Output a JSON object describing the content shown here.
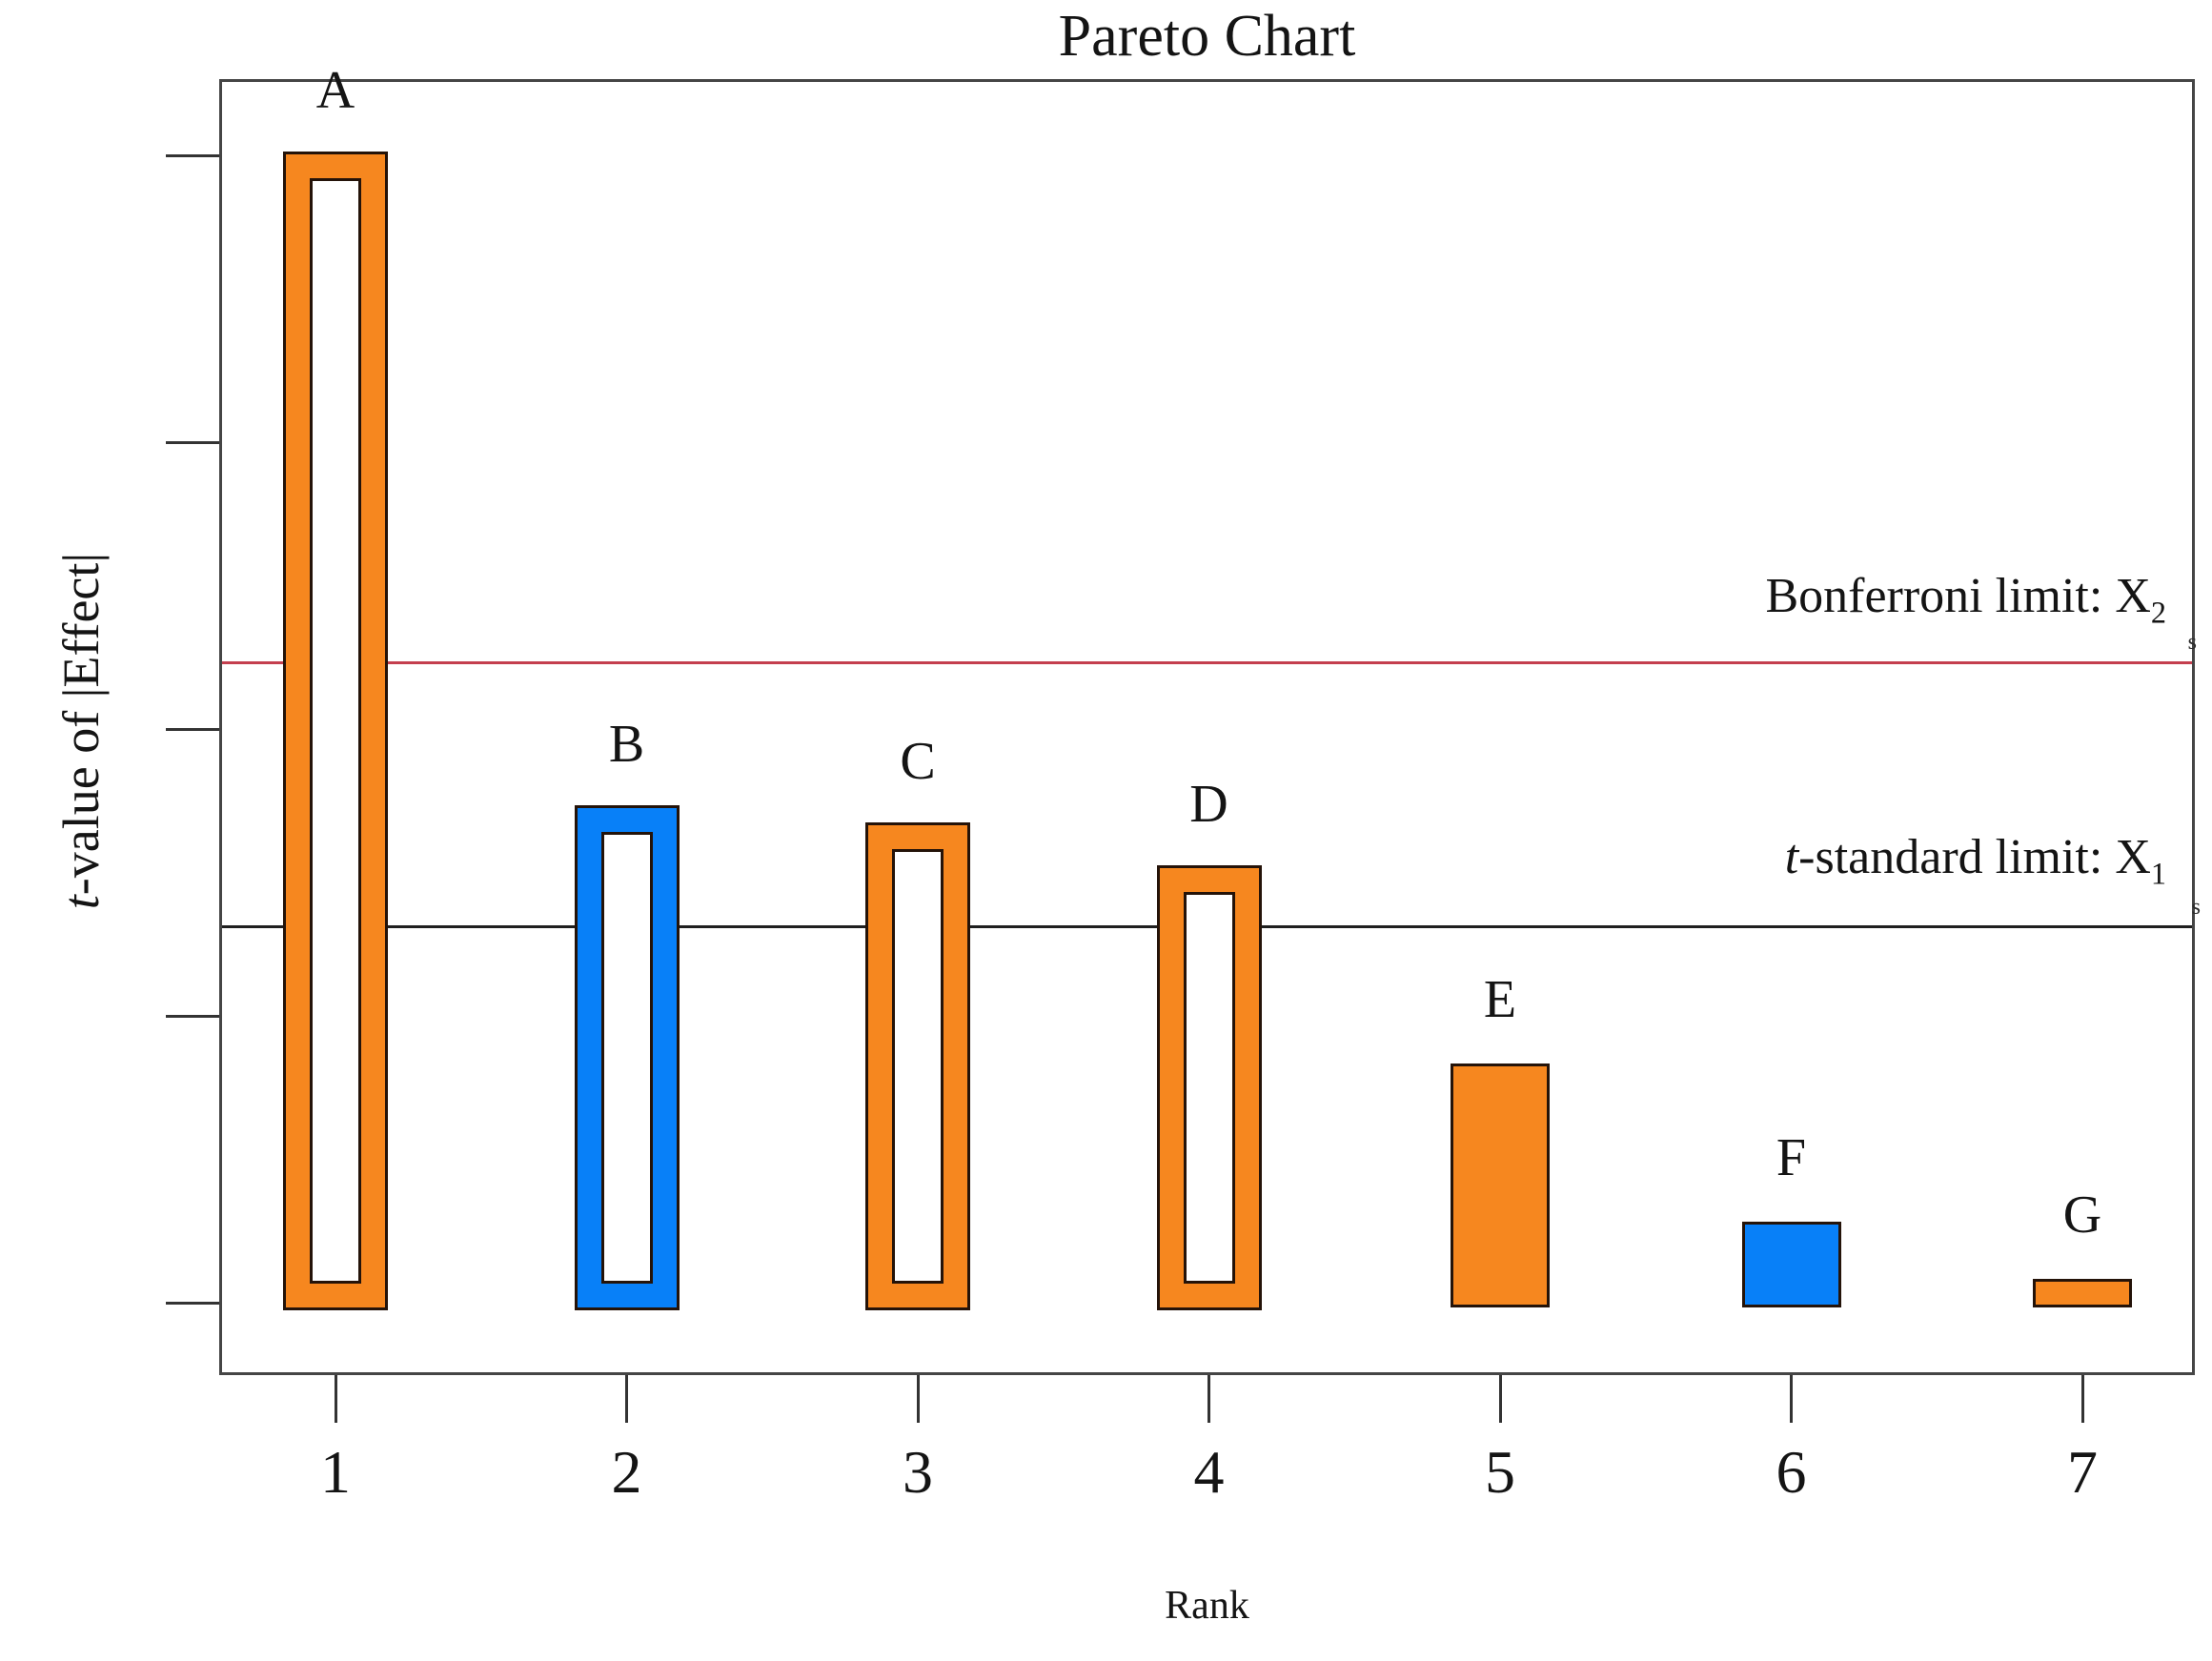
{
  "title": "Pareto Chart",
  "axes": {
    "x_label": "Rank",
    "y_label_italic": "t",
    "y_label_rest": "-value of |Effect|",
    "x_tick_labels": [
      "1",
      "2",
      "3",
      "4",
      "5",
      "6",
      "7"
    ],
    "y_tick_count": 5
  },
  "annotations": {
    "bonferroni_text": "Bonferroni limit: X",
    "bonferroni_sub": "2",
    "tstandard_italic": "t",
    "tstandard_text": "-standard limit: X",
    "tstandard_sub": "1",
    "right_edge_mark_top": "s",
    "right_edge_mark_bottom": "s"
  },
  "colors": {
    "orange": "#F6871F",
    "blue": "#0880F8",
    "bar_outline": "#241309",
    "frame": "#454545",
    "red_line": "#C43F4E",
    "black_line": "#1F1F1F",
    "text": "#141414"
  },
  "chart_data": {
    "type": "bar",
    "title": "Pareto Chart",
    "xlabel": "Rank",
    "ylabel": "t-value of |Effect|",
    "categories": [
      "1",
      "2",
      "3",
      "4",
      "5",
      "6",
      "7"
    ],
    "bar_labels": [
      "A",
      "B",
      "C",
      "D",
      "E",
      "F",
      "G"
    ],
    "values": [
      4.02,
      1.74,
      1.68,
      1.53,
      0.85,
      0.3,
      0.1
    ],
    "bar_styles": [
      {
        "color": "orange",
        "fill": "hollow"
      },
      {
        "color": "blue",
        "fill": "hollow"
      },
      {
        "color": "orange",
        "fill": "hollow"
      },
      {
        "color": "orange",
        "fill": "hollow"
      },
      {
        "color": "orange",
        "fill": "solid"
      },
      {
        "color": "blue",
        "fill": "solid"
      },
      {
        "color": "orange",
        "fill": "solid"
      }
    ],
    "reference_lines": [
      {
        "name": "bonferroni",
        "label": "Bonferroni limit: X2",
        "value": 2.25,
        "color": "#C43F4E"
      },
      {
        "name": "t-standard",
        "label": "t-standard limit: X1",
        "value": 1.33,
        "color": "#1F1F1F"
      }
    ],
    "ylim": [
      0,
      4.28
    ],
    "y_units": "relative units (y axis has unlabeled ticks; 1 unit = 1 tick interval)",
    "legend": "none",
    "grid": false
  }
}
